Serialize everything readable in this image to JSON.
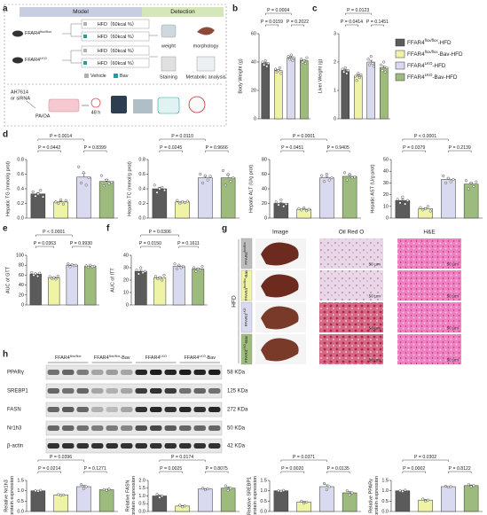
{
  "panel_labels": [
    "a",
    "b",
    "c",
    "d",
    "e",
    "f",
    "g",
    "h"
  ],
  "groups": [
    {
      "name": {
        "base": "FFAR4",
        "sup": "flox/flox",
        "suffix": "-HFD"
      },
      "color": "#5b5b5b"
    },
    {
      "name": {
        "base": "FFAR4",
        "sup": "flox/flox",
        "suffix": "-Bav-HFD"
      },
      "color": "#eef3a6"
    },
    {
      "name": {
        "base": "FFAR4",
        "sup": "LKO",
        "suffix": "-HFD"
      },
      "color": "#d9daf0"
    },
    {
      "name": {
        "base": "FFAR4",
        "sup": "LKO",
        "suffix": "-Bav-HFD"
      },
      "color": "#9dbb7c"
    }
  ],
  "schematic": {
    "model": "Model",
    "detection": "Detection",
    "mice": [
      {
        "base": "FFAR4",
        "sup": "flox/flox"
      },
      {
        "base": "FFAR4",
        "sup": "LKO"
      }
    ],
    "diets": [
      "HFD（60kcal %）",
      "HFD（60kcal %）",
      "HFD（60kcal %）",
      "HFD（60kcal %）"
    ],
    "readouts": [
      "weight",
      "morphology",
      "Staining",
      "Metabolic analysis"
    ],
    "treatments": [
      "Vehicle",
      "Bav"
    ],
    "cell_treatment": [
      "AH7614",
      "or siRNA"
    ],
    "cell_stimulus": "PA/OA",
    "duration": "48 h"
  },
  "histology": {
    "condition": "HFD",
    "columns": [
      "Image",
      "Oil Red O",
      "H&E"
    ],
    "rows": [
      {
        "label": {
          "base": "FFAR4",
          "sup": "flox/flox"
        },
        "scale_bars": [
          "50 μm",
          "50 μm"
        ]
      },
      {
        "label": {
          "base": "FFAR4",
          "sup": "flox/flox",
          "suffix": "-Bav"
        },
        "scale_bars": [
          "50 μm",
          "50 μm"
        ]
      },
      {
        "label": {
          "base": "FFAR4",
          "sup": "LKO"
        },
        "scale_bars": [
          "50 μm",
          "50 μm"
        ]
      },
      {
        "label": {
          "base": "FFAR4",
          "sup": "LKO",
          "suffix": "-Bav"
        },
        "scale_bars": [
          "50 μm",
          "50 μm"
        ]
      }
    ]
  },
  "western_blot": {
    "lanes": [
      {
        "base": "FFAR4",
        "sup": "flox/flox"
      },
      {
        "base": "FFAR4",
        "sup": "flox/flox",
        "suffix": "-Bav"
      },
      {
        "base": "FFAR4",
        "sup": "LKO"
      },
      {
        "base": "FFAR4",
        "sup": "LKO",
        "suffix": "-Bav"
      }
    ],
    "proteins": [
      {
        "name": "PPARγ",
        "size": "58 KDa"
      },
      {
        "name": "SREBP1",
        "size": "125 KDa"
      },
      {
        "name": "FASN",
        "size": "272 KDa"
      },
      {
        "name": "Nr1h3",
        "size": "50 KDa"
      },
      {
        "name": "β-actin",
        "size": "42 KDa"
      }
    ]
  },
  "chart_data": [
    {
      "type": "bar",
      "ylabel": "Body Weight (g)",
      "ylim": [
        0,
        60
      ],
      "yticks": [
        0,
        20,
        40,
        60
      ],
      "values": [
        39,
        34,
        43,
        41
      ],
      "errors": [
        0.8,
        0.7,
        0.8,
        0.7
      ],
      "points": [
        [
          40,
          38,
          41,
          37,
          39
        ],
        [
          35,
          33,
          34,
          36,
          32
        ],
        [
          44,
          42,
          45,
          41,
          43
        ],
        [
          42,
          40,
          41,
          39,
          43
        ]
      ],
      "annotations": [
        "P = 0.0004",
        "P = 0.0159",
        "P = 0.2022"
      ]
    },
    {
      "type": "bar",
      "ylabel": "Liver Weight (g)",
      "ylim": [
        0,
        3
      ],
      "yticks": [
        0,
        1,
        2,
        3
      ],
      "values": [
        1.7,
        1.5,
        2.0,
        1.8
      ],
      "errors": [
        0.04,
        0.04,
        0.06,
        0.06
      ],
      "points": [
        [
          1.75,
          1.65,
          1.8,
          1.6,
          1.7
        ],
        [
          1.5,
          1.35,
          1.6,
          1.45,
          1.55
        ],
        [
          2.1,
          1.9,
          2.2,
          1.95,
          1.85
        ],
        [
          1.9,
          1.7,
          2.0,
          1.65,
          1.8
        ]
      ],
      "annotations": [
        "P = 0.0123",
        "P = 0.0414",
        "P = 0.1451"
      ]
    },
    {
      "type": "bar",
      "ylabel": "Hepatic TG (mmol/g prot)",
      "ylim": [
        0,
        0.8
      ],
      "yticks": [
        {
          "value": 0,
          "label": "0.0"
        },
        0.2,
        0.4,
        0.6,
        0.8
      ],
      "values": [
        0.33,
        0.22,
        0.56,
        0.5
      ],
      "errors": [
        0.02,
        0.01,
        0.05,
        0.03
      ],
      "points": [
        [
          0.36,
          0.3,
          0.33,
          0.38,
          0.29
        ],
        [
          0.22,
          0.2,
          0.25,
          0.19,
          0.24
        ],
        [
          0.7,
          0.48,
          0.62,
          0.45,
          0.55
        ],
        [
          0.58,
          0.44,
          0.52,
          0.47,
          0.49
        ]
      ],
      "annotations": [
        "P = 0.0014",
        "P = 0.0442",
        "P = 0.8399"
      ]
    },
    {
      "type": "bar",
      "ylabel": "Hepatic TC (mmol/g prot)",
      "ylim": [
        0,
        0.8
      ],
      "yticks": [
        {
          "value": 0,
          "label": "0.0"
        },
        0.2,
        0.4,
        0.6,
        0.8
      ],
      "values": [
        0.4,
        0.22,
        0.55,
        0.55
      ],
      "errors": [
        0.02,
        0.01,
        0.02,
        0.04
      ],
      "points": [
        [
          0.45,
          0.35,
          0.4,
          0.42,
          0.38
        ],
        [
          0.24,
          0.2,
          0.22,
          0.21,
          0.23
        ],
        [
          0.6,
          0.48,
          0.58,
          0.52,
          0.57
        ],
        [
          0.65,
          0.45,
          0.6,
          0.5,
          0.55
        ]
      ],
      "annotations": [
        "P = 0.0110",
        "P = 0.0245",
        "P = 0.9666"
      ]
    },
    {
      "type": "bar",
      "ylabel": "Hepatic ALT (U/g prot)",
      "ylim": [
        0,
        80
      ],
      "yticks": [
        0,
        20,
        40,
        60,
        80
      ],
      "values": [
        20,
        12,
        55,
        57
      ],
      "errors": [
        1.6,
        0.7,
        1.9,
        1.8
      ],
      "points": [
        [
          22,
          18,
          25,
          16,
          19
        ],
        [
          13,
          11,
          14,
          10,
          12
        ],
        [
          58,
          50,
          60,
          52,
          55
        ],
        [
          62,
          52,
          60,
          55,
          56
        ]
      ],
      "annotations": [
        "P = 0.0001",
        "P = 0.0451",
        "P = 0.9405"
      ]
    },
    {
      "type": "bar",
      "ylabel": "Hepatic AST (U/g prot)",
      "ylim": [
        0,
        50
      ],
      "yticks": [
        0,
        10,
        20,
        30,
        40,
        50
      ],
      "values": [
        15,
        8,
        33,
        29
      ],
      "errors": [
        1.1,
        0.7,
        1.1,
        1.3
      ],
      "points": [
        [
          16,
          13,
          18,
          12,
          15
        ],
        [
          9,
          7,
          8,
          10,
          6
        ],
        [
          36,
          30,
          34,
          31,
          33
        ],
        [
          32,
          25,
          30,
          27,
          31
        ]
      ],
      "annotations": [
        "P < 0.0001",
        "P = 0.0379",
        "P = 0.2139"
      ]
    },
    {
      "type": "bar",
      "ylabel": "AUC of GTT",
      "ylim": [
        0,
        100
      ],
      "yticks": [
        0,
        20,
        40,
        60,
        80,
        100
      ],
      "values": [
        62,
        55,
        80,
        78
      ],
      "errors": [
        1.3,
        1.1,
        1.1,
        0.7
      ],
      "points": [
        [
          65,
          60,
          63,
          58,
          64
        ],
        [
          57,
          53,
          55,
          52,
          58
        ],
        [
          83,
          77,
          81,
          79,
          80
        ],
        [
          79,
          76,
          80,
          77,
          78
        ]
      ],
      "annotations": [
        "P < 0.0001",
        "P = 0.0363",
        "P = 0.9930"
      ]
    },
    {
      "type": "bar",
      "ylabel": "AUC of ITT",
      "ylim": [
        0,
        40
      ],
      "yticks": [
        0,
        10,
        20,
        30,
        40
      ],
      "values": [
        27,
        22,
        31,
        29
      ],
      "errors": [
        0.9,
        0.7,
        0.7,
        0.7
      ],
      "points": [
        [
          28,
          25,
          30,
          26,
          27
        ],
        [
          23,
          21,
          22,
          20,
          24
        ],
        [
          33,
          29,
          32,
          30,
          31
        ],
        [
          30,
          27,
          29,
          28,
          31
        ]
      ],
      "annotations": [
        "P = 0.0306",
        "P = 0.0150",
        "P = 0.1611"
      ]
    },
    {
      "type": "bar",
      "ylabel": [
        "Relative Nr1h3",
        "protein expression"
      ],
      "ylim": [
        0,
        1.5
      ],
      "yticks": [
        {
          "value": 0,
          "label": "0.0"
        },
        0.5,
        {
          "value": 1,
          "label": "1.0"
        },
        1.5
      ],
      "values": [
        1.0,
        0.8,
        1.2,
        1.05
      ],
      "errors": [
        0.01,
        0.01,
        0.06,
        0.02
      ],
      "points": [
        [
          1.0,
          0.98,
          1.02
        ],
        [
          0.82,
          0.78,
          0.8
        ],
        [
          1.3,
          1.1,
          1.2
        ],
        [
          1.05,
          1.02,
          1.08
        ]
      ],
      "annotations": [
        "P = 0.0396",
        "P = 0.0214",
        "P = 0.1271"
      ]
    },
    {
      "type": "bar",
      "ylabel": [
        "Relative FASN",
        "protein expression"
      ],
      "ylim": [
        0,
        2
      ],
      "yticks": [
        {
          "value": 0,
          "label": "0.0"
        },
        0.5,
        {
          "value": 1,
          "label": "1.0"
        },
        1.5,
        {
          "value": 2,
          "label": "2.0"
        }
      ],
      "values": [
        1.0,
        0.35,
        1.45,
        1.5
      ],
      "errors": [
        0.06,
        0.03,
        0.03,
        0.09
      ],
      "points": [
        [
          1.1,
          0.9,
          1.0
        ],
        [
          0.4,
          0.3,
          0.35
        ],
        [
          1.5,
          1.4,
          1.45
        ],
        [
          1.65,
          1.35,
          1.5
        ]
      ],
      "annotations": [
        "P = 0.0174",
        "P = 0.0025",
        "P = 0.8075"
      ]
    },
    {
      "type": "bar",
      "ylabel": [
        "Relative SREBP1",
        "protein expression"
      ],
      "ylim": [
        0,
        1.5
      ],
      "yticks": [
        {
          "value": 0,
          "label": "0.0"
        },
        0.5,
        {
          "value": 1,
          "label": "1.0"
        },
        1.5
      ],
      "values": [
        1.0,
        0.45,
        1.2,
        0.9
      ],
      "errors": [
        0.01,
        0.03,
        0.09,
        0.06
      ],
      "points": [
        [
          1.0,
          0.98,
          1.02
        ],
        [
          0.5,
          0.4,
          0.45
        ],
        [
          1.35,
          1.05,
          1.2
        ],
        [
          1.0,
          0.8,
          0.9
        ]
      ],
      "annotations": [
        "P = 0.0371",
        "P = 0.0020",
        "P = 0.0135"
      ]
    },
    {
      "type": "bar",
      "ylabel": [
        "Relative PPARγ",
        "protein expression"
      ],
      "ylim": [
        0,
        1.5
      ],
      "yticks": [
        {
          "value": 0,
          "label": "0.0"
        },
        0.5,
        {
          "value": 1,
          "label": "1.0"
        },
        1.5
      ],
      "values": [
        1.0,
        0.55,
        1.2,
        1.25
      ],
      "errors": [
        0.02,
        0.03,
        0.01,
        0.03
      ],
      "points": [
        [
          1.0,
          0.97,
          1.03
        ],
        [
          0.6,
          0.5,
          0.55
        ],
        [
          1.22,
          1.18,
          1.2
        ],
        [
          1.3,
          1.2,
          1.25
        ]
      ],
      "annotations": [
        "P = 0.0302",
        "P = 0.0002",
        "P = 0.8122"
      ]
    }
  ]
}
